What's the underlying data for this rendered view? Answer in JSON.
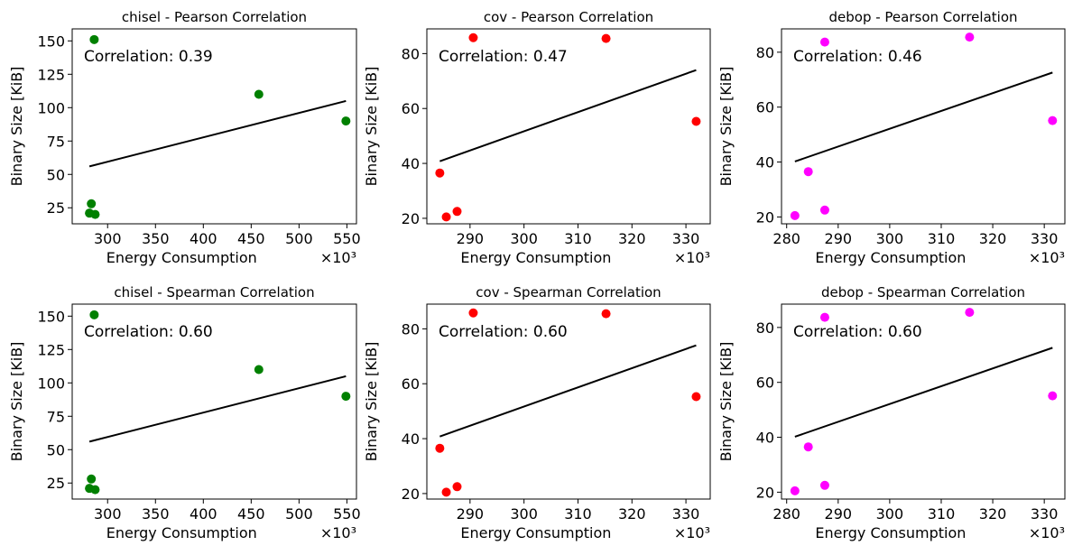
{
  "chart_data": [
    {
      "type": "scatter",
      "title": "chisel - Pearson Correlation",
      "annotation": "Correlation: 0.39",
      "xlabel": "Energy Consumption",
      "ylabel": "Binary Size [KiB]",
      "x_multiplier": "×10³",
      "xlim": [
        263,
        560
      ],
      "ylim": [
        13,
        159
      ],
      "xticks": [
        300,
        350,
        400,
        450,
        500,
        550
      ],
      "yticks": [
        25,
        50,
        75,
        100,
        125,
        150
      ],
      "color": "#008000",
      "series": [
        {
          "x": [
            281,
            283,
            287,
            286,
            458,
            549
          ],
          "y": [
            21,
            28,
            20,
            151,
            110,
            90
          ]
        }
      ],
      "fit": {
        "x": [
          281,
          549
        ],
        "y": [
          56,
          105
        ]
      }
    },
    {
      "type": "scatter",
      "title": "cov - Pearson Correlation",
      "annotation": "Correlation: 0.47",
      "xlabel": "Energy Consumption",
      "ylabel": "Binary Size [KiB]",
      "x_multiplier": "×10³",
      "xlim": [
        282,
        334.5
      ],
      "ylim": [
        18,
        89
      ],
      "xticks": [
        290,
        300,
        310,
        320,
        330
      ],
      "yticks": [
        20,
        40,
        60,
        80
      ],
      "color": "#ff0000",
      "series": [
        {
          "x": [
            284.4,
            285.6,
            287.6,
            290.6,
            315.2,
            331.9
          ],
          "y": [
            36.5,
            20.5,
            22.5,
            85.8,
            85.5,
            55.3
          ]
        }
      ],
      "fit": {
        "x": [
          284.4,
          331.9
        ],
        "y": [
          40.8,
          74
        ]
      }
    },
    {
      "type": "scatter",
      "title": "debop - Pearson Correlation",
      "annotation": "Correlation: 0.46",
      "xlabel": "Energy Consumption",
      "ylabel": "Binary Size [KiB]",
      "x_multiplier": "×10³",
      "xlim": [
        279,
        334
      ],
      "ylim": [
        17.5,
        88.5
      ],
      "xticks": [
        280,
        290,
        300,
        310,
        320,
        330
      ],
      "yticks": [
        20,
        40,
        60,
        80
      ],
      "color": "#ff00ff",
      "series": [
        {
          "x": [
            281.6,
            284.2,
            287.4,
            287.4,
            315.5,
            331.6
          ],
          "y": [
            20.5,
            36.5,
            22.5,
            83.7,
            85.5,
            55.1
          ]
        }
      ],
      "fit": {
        "x": [
          281.6,
          331.6
        ],
        "y": [
          40.2,
          72.6
        ]
      }
    },
    {
      "type": "scatter",
      "title": "chisel - Spearman Correlation",
      "annotation": "Correlation: 0.60",
      "xlabel": "Energy Consumption",
      "ylabel": "Binary Size [KiB]",
      "x_multiplier": "×10³",
      "xlim": [
        263,
        560
      ],
      "ylim": [
        13,
        159
      ],
      "xticks": [
        300,
        350,
        400,
        450,
        500,
        550
      ],
      "yticks": [
        25,
        50,
        75,
        100,
        125,
        150
      ],
      "color": "#008000",
      "series": [
        {
          "x": [
            281,
            283,
            287,
            286,
            458,
            549
          ],
          "y": [
            21,
            28,
            20,
            151,
            110,
            90
          ]
        }
      ],
      "fit": {
        "x": [
          281,
          549
        ],
        "y": [
          56,
          105
        ]
      }
    },
    {
      "type": "scatter",
      "title": "cov - Spearman Correlation",
      "annotation": "Correlation: 0.60",
      "xlabel": "Energy Consumption",
      "ylabel": "Binary Size [KiB]",
      "x_multiplier": "×10³",
      "xlim": [
        282,
        334.5
      ],
      "ylim": [
        18,
        89
      ],
      "xticks": [
        290,
        300,
        310,
        320,
        330
      ],
      "yticks": [
        20,
        40,
        60,
        80
      ],
      "color": "#ff0000",
      "series": [
        {
          "x": [
            284.4,
            285.6,
            287.6,
            290.6,
            315.2,
            331.9
          ],
          "y": [
            36.5,
            20.5,
            22.5,
            85.8,
            85.5,
            55.3
          ]
        }
      ],
      "fit": {
        "x": [
          284.4,
          331.9
        ],
        "y": [
          40.8,
          74
        ]
      }
    },
    {
      "type": "scatter",
      "title": "debop - Spearman Correlation",
      "annotation": "Correlation: 0.60",
      "xlabel": "Energy Consumption",
      "ylabel": "Binary Size [KiB]",
      "x_multiplier": "×10³",
      "xlim": [
        279,
        334
      ],
      "ylim": [
        17.5,
        88.5
      ],
      "xticks": [
        280,
        290,
        300,
        310,
        320,
        330
      ],
      "yticks": [
        20,
        40,
        60,
        80
      ],
      "color": "#ff00ff",
      "series": [
        {
          "x": [
            281.6,
            284.2,
            287.4,
            287.4,
            315.5,
            331.6
          ],
          "y": [
            20.5,
            36.5,
            22.5,
            83.7,
            85.5,
            55.1
          ]
        }
      ],
      "fit": {
        "x": [
          281.6,
          331.6
        ],
        "y": [
          40.2,
          72.6
        ]
      }
    }
  ]
}
